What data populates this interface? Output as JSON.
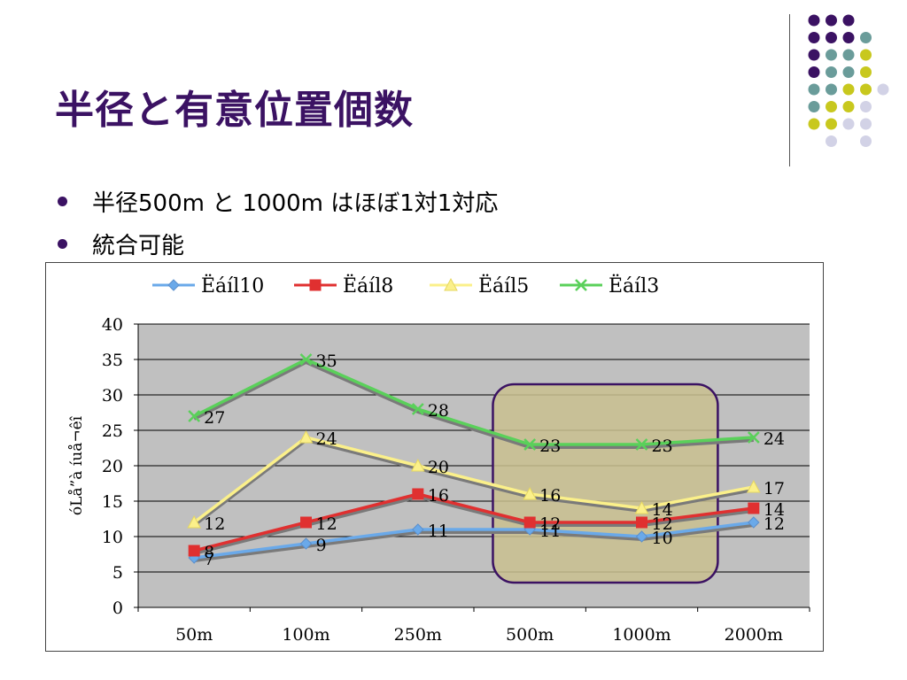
{
  "slide": {
    "title": "半径と有意位置個数",
    "bullets": [
      "半径500m と 1000m はほぼ1対1対応",
      "統合可能"
    ]
  },
  "colors": {
    "title": "#3b1263",
    "plot_bg": "#c0c0c0",
    "highlight_fill": "#c9c08f",
    "highlight_stroke": "#3b1263",
    "dot_purple": "#3b1263",
    "dot_teal": "#6a9c9a",
    "dot_yellow": "#c8c81e",
    "dot_lavender": "#d2d2e6"
  },
  "chart_data": {
    "type": "line",
    "title": "",
    "categories": [
      "50m",
      "100m",
      "250m",
      "500m",
      "1000m",
      "2000m"
    ],
    "ylabel": "óLå”à íuå¬êî",
    "xlabel": "",
    "ylim": [
      0,
      40
    ],
    "yticks": [
      "0",
      "5",
      "10",
      "15",
      "20",
      "25",
      "30",
      "35",
      "40"
    ],
    "grid": true,
    "legend_position": "top",
    "series": [
      {
        "name": "Ëáíl10",
        "color": "#6aa9e9",
        "marker": "diamond",
        "values": [
          7,
          9,
          11,
          11,
          10,
          12
        ]
      },
      {
        "name": "Ëáíl8",
        "color": "#e03030",
        "marker": "square",
        "values": [
          8,
          12,
          16,
          12,
          12,
          14
        ]
      },
      {
        "name": "Ëáíl5",
        "color": "#fbf08a",
        "marker": "triangle",
        "values": [
          12,
          24,
          20,
          16,
          14,
          17
        ]
      },
      {
        "name": "Ëáíl3",
        "color": "#5ad05a",
        "marker": "x",
        "values": [
          27,
          35,
          28,
          23,
          23,
          24
        ]
      }
    ],
    "highlight": {
      "from_category": "500m",
      "to_category": "1000m"
    }
  }
}
